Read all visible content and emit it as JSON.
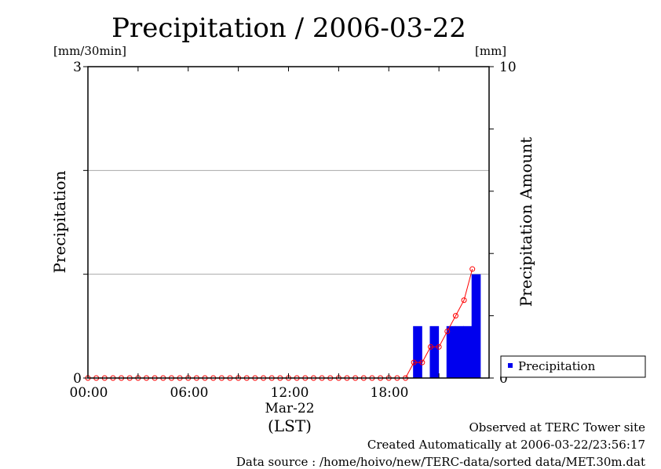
{
  "chart_data": {
    "type": "bar",
    "title": "Precipitation / 2006-03-22",
    "left_unit": "[mm/30min]",
    "right_unit": "[mm]",
    "ylabel": "Precipitation",
    "y2label": "Precipitation Amount",
    "ylim": [
      0,
      3
    ],
    "y2lim": [
      0,
      10
    ],
    "yticks": [
      0,
      3
    ],
    "y2ticks": [
      0,
      10
    ],
    "y_gridlines": [
      1,
      2
    ],
    "x_ticks": [
      "00:00",
      "06:00",
      "12:00",
      "18:00"
    ],
    "date_label": "Mar-22",
    "time_zone": "(LST)",
    "x_range_hours": [
      0,
      24
    ],
    "legend": {
      "placement": "lower-right-outside",
      "entries": [
        "Precipitation"
      ]
    },
    "series": [
      {
        "name": "Precipitation",
        "kind": "bar",
        "axis": "left",
        "color": "#0000ee",
        "x": [
          "19:30",
          "20:00",
          "20:30",
          "21:00",
          "21:30",
          "22:00",
          "22:30",
          "23:00"
        ],
        "values": [
          0.5,
          0,
          0.5,
          0,
          0.5,
          0.5,
          0.5,
          1.0
        ]
      },
      {
        "name": "Precipitation Amount",
        "kind": "line",
        "axis": "right",
        "color": "#ff0000",
        "x": [
          "00:00",
          "00:30",
          "01:00",
          "01:30",
          "02:00",
          "02:30",
          "03:00",
          "03:30",
          "04:00",
          "04:30",
          "05:00",
          "05:30",
          "06:00",
          "06:30",
          "07:00",
          "07:30",
          "08:00",
          "08:30",
          "09:00",
          "09:30",
          "10:00",
          "10:30",
          "11:00",
          "11:30",
          "12:00",
          "12:30",
          "13:00",
          "13:30",
          "14:00",
          "14:30",
          "15:00",
          "15:30",
          "16:00",
          "16:30",
          "17:00",
          "17:30",
          "18:00",
          "18:30",
          "19:00",
          "19:30",
          "20:00",
          "20:30",
          "21:00",
          "21:30",
          "22:00",
          "22:30",
          "23:00",
          "23:30"
        ],
        "values": [
          0,
          0,
          0,
          0,
          0,
          0,
          0,
          0,
          0,
          0,
          0,
          0,
          0,
          0,
          0,
          0,
          0,
          0,
          0,
          0,
          0,
          0,
          0,
          0,
          0,
          0,
          0,
          0,
          0,
          0,
          0,
          0,
          0,
          0,
          0,
          0,
          0,
          0,
          0,
          0.5,
          0.5,
          1.0,
          1.0,
          1.5,
          2.0,
          2.5,
          3.5,
          null
        ],
        "first_value_time": "00:00",
        "last_value": 3.5
      }
    ]
  },
  "footer": {
    "line1": "Observed at TERC Tower site",
    "line2": "Created Automatically at 2006-03-22/23:56:17",
    "line3": "Data source : /home/hoivo/new/TERC-data/sorted  data/MET.30m.dat"
  }
}
